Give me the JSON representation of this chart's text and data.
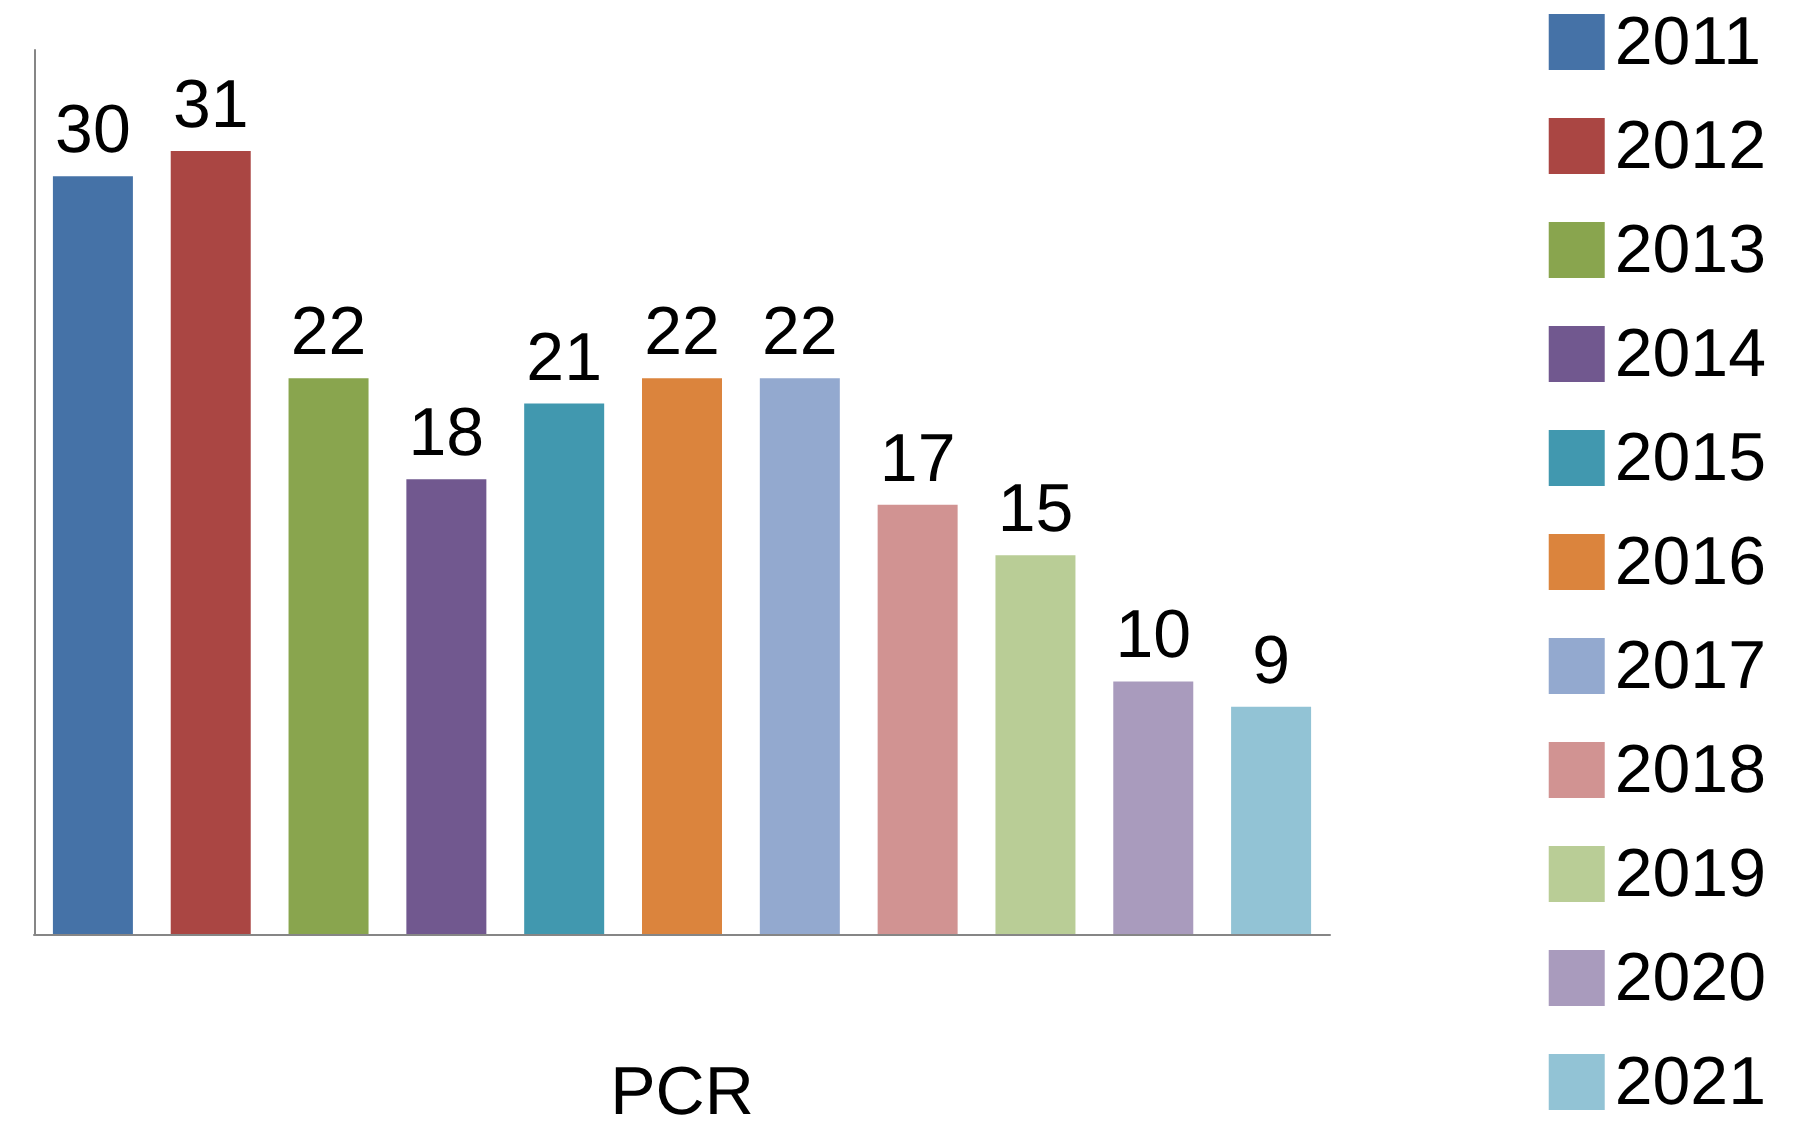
{
  "chart_data": {
    "type": "bar",
    "xlabel": "PCR",
    "categories": [
      null,
      null,
      null,
      null,
      null,
      null,
      null,
      null,
      null,
      null,
      null
    ],
    "series": [
      {
        "name": "2011",
        "color": "#4572a7",
        "values": [
          30,
          null,
          null,
          null,
          null,
          null,
          null,
          null,
          null,
          null,
          null
        ]
      },
      {
        "name": "2012",
        "color": "#aa4643",
        "values": [
          null,
          31,
          null,
          null,
          null,
          null,
          null,
          null,
          null,
          null,
          null
        ]
      },
      {
        "name": "2013",
        "color": "#89a54e",
        "values": [
          null,
          null,
          22,
          null,
          null,
          null,
          null,
          null,
          null,
          null,
          null
        ]
      },
      {
        "name": "2014",
        "color": "#71588f",
        "values": [
          null,
          null,
          null,
          18,
          null,
          null,
          null,
          null,
          null,
          null,
          null
        ]
      },
      {
        "name": "2015",
        "color": "#4198af",
        "values": [
          null,
          null,
          null,
          null,
          21,
          null,
          null,
          null,
          null,
          null,
          null
        ]
      },
      {
        "name": "2016",
        "color": "#db843d",
        "values": [
          null,
          null,
          null,
          null,
          null,
          22,
          null,
          null,
          null,
          null,
          null
        ]
      },
      {
        "name": "2017",
        "color": "#93a9cf",
        "values": [
          null,
          null,
          null,
          null,
          null,
          null,
          22,
          null,
          null,
          null,
          null
        ]
      },
      {
        "name": "2018",
        "color": "#d19392",
        "values": [
          null,
          null,
          null,
          null,
          null,
          null,
          null,
          17,
          null,
          null,
          null
        ]
      },
      {
        "name": "2019",
        "color": "#b9cd96",
        "values": [
          null,
          null,
          null,
          null,
          null,
          null,
          null,
          null,
          15,
          null,
          null
        ]
      },
      {
        "name": "2020",
        "color": "#a99bbd",
        "values": [
          null,
          null,
          null,
          null,
          null,
          null,
          null,
          null,
          null,
          10,
          null
        ]
      },
      {
        "name": "2021",
        "color": "#92c3d5",
        "values": [
          null,
          null,
          null,
          null,
          null,
          null,
          null,
          null,
          null,
          null,
          9
        ]
      }
    ],
    "stacked": true,
    "data_labels": true,
    "legend": "right",
    "grid": false,
    "tick_labels": false
  }
}
